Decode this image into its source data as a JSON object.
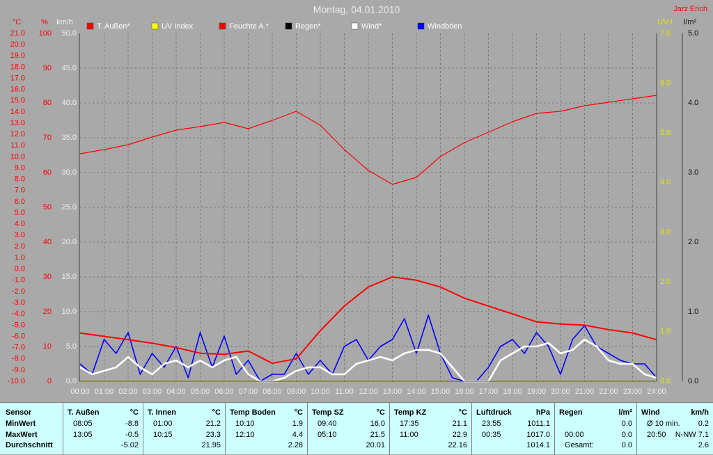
{
  "chart_data": {
    "type": "line",
    "title": "Montag, 04.01.2010",
    "corner_label": "Jarz Erich",
    "xlim": [
      0,
      24
    ],
    "xticks": [
      {
        "value": 0,
        "label": "00:00"
      },
      {
        "value": 1,
        "label": "01:00"
      },
      {
        "value": 2,
        "label": "02:00"
      },
      {
        "value": 3,
        "label": "03:00"
      },
      {
        "value": 4,
        "label": "04:00"
      },
      {
        "value": 5,
        "label": "05:00"
      },
      {
        "value": 6,
        "label": "06:00"
      },
      {
        "value": 7,
        "label": "07:00"
      },
      {
        "value": 8,
        "label": "08:00"
      },
      {
        "value": 9,
        "label": "09:00"
      },
      {
        "value": 10,
        "label": "10:00"
      },
      {
        "value": 11,
        "label": "11:00"
      },
      {
        "value": 12,
        "label": "12:00"
      },
      {
        "value": 13,
        "label": "13:00"
      },
      {
        "value": 14,
        "label": "14:00"
      },
      {
        "value": 15,
        "label": "15:00"
      },
      {
        "value": 16,
        "label": "16:00"
      },
      {
        "value": 17,
        "label": "17:00"
      },
      {
        "value": 18,
        "label": "18:00"
      },
      {
        "value": 19,
        "label": "19:00"
      },
      {
        "value": 20,
        "label": "20:00"
      },
      {
        "value": 21,
        "label": "21:00"
      },
      {
        "value": 22,
        "label": "22:00"
      },
      {
        "value": 23,
        "label": "23:00"
      },
      {
        "value": 24,
        "label": "24:00"
      }
    ],
    "grid": true,
    "axes": [
      {
        "id": "temp",
        "label": "°C",
        "color": "#ff0000",
        "lim": [
          -10,
          21
        ],
        "ticks": [
          {
            "value": 21,
            "label": "21.0"
          },
          {
            "value": 20,
            "label": "20.0"
          },
          {
            "value": 19,
            "label": "19.0"
          },
          {
            "value": 18,
            "label": "18.0"
          },
          {
            "value": 17,
            "label": "17.0"
          },
          {
            "value": 16,
            "label": "16.0"
          },
          {
            "value": 15,
            "label": "15.0"
          },
          {
            "value": 14,
            "label": "14.0"
          },
          {
            "value": 13,
            "label": "13.0"
          },
          {
            "value": 12,
            "label": "12.0"
          },
          {
            "value": 11,
            "label": "11.0"
          },
          {
            "value": 10,
            "label": "10.0"
          },
          {
            "value": 9,
            "label": "9.0"
          },
          {
            "value": 8,
            "label": "8.0"
          },
          {
            "value": 7,
            "label": "7.0"
          },
          {
            "value": 6,
            "label": "6.0"
          },
          {
            "value": 5,
            "label": "5.0"
          },
          {
            "value": 4,
            "label": "4.0"
          },
          {
            "value": 3,
            "label": "3.0"
          },
          {
            "value": 2,
            "label": "2.0"
          },
          {
            "value": 1,
            "label": "1.0"
          },
          {
            "value": 0,
            "label": "0.0"
          },
          {
            "value": -1,
            "label": "-1.0"
          },
          {
            "value": -2,
            "label": "-2.0"
          },
          {
            "value": -3,
            "label": "-3.0"
          },
          {
            "value": -4,
            "label": "-4.0"
          },
          {
            "value": -5,
            "label": "-5.0"
          },
          {
            "value": -6,
            "label": "-6.0"
          },
          {
            "value": -7,
            "label": "-7.0"
          },
          {
            "value": -8,
            "label": "-8.0"
          },
          {
            "value": -9,
            "label": "-9.0"
          },
          {
            "value": -10,
            "label": "-10.0"
          }
        ]
      },
      {
        "id": "hum",
        "label": "%",
        "color": "#ff0000",
        "lim": [
          0,
          100
        ],
        "ticks": [
          100,
          90,
          80,
          70,
          60,
          50,
          40,
          30,
          20,
          10,
          0
        ]
      },
      {
        "id": "wind",
        "label": "km/h",
        "color": "#f0f0f0",
        "lim": [
          0,
          50
        ],
        "ticks": [
          {
            "value": 50,
            "label": "50.0"
          },
          {
            "value": 45,
            "label": "45.0"
          },
          {
            "value": 40,
            "label": "40.0"
          },
          {
            "value": 35,
            "label": "35.0"
          },
          {
            "value": 30,
            "label": "30.0"
          },
          {
            "value": 25,
            "label": "25.0"
          },
          {
            "value": 20,
            "label": "20.0"
          },
          {
            "value": 15,
            "label": "15.0"
          },
          {
            "value": 10,
            "label": "10.0"
          },
          {
            "value": 5,
            "label": "5.0"
          },
          {
            "value": 0,
            "label": "0.0"
          }
        ]
      },
      {
        "id": "uv",
        "label": "UV-I",
        "color": "#e8e800",
        "lim": [
          0,
          7
        ],
        "ticks": [
          {
            "value": 7,
            "label": "7.0"
          },
          {
            "value": 6,
            "label": "6.0"
          },
          {
            "value": 5,
            "label": "5.0"
          },
          {
            "value": 4,
            "label": "4.0"
          },
          {
            "value": 3,
            "label": "3.0"
          },
          {
            "value": 2,
            "label": "2.0"
          },
          {
            "value": 1,
            "label": "1.0"
          },
          {
            "value": 0,
            "label": "0.0"
          }
        ]
      },
      {
        "id": "rain",
        "label": "l/m²",
        "color": "#101010",
        "lim": [
          0,
          5
        ],
        "ticks": [
          {
            "value": 5,
            "label": "5.0"
          },
          {
            "value": 4,
            "label": "4.0"
          },
          {
            "value": 3,
            "label": "3.0"
          },
          {
            "value": 2,
            "label": "2.0"
          },
          {
            "value": 1,
            "label": "1.0"
          },
          {
            "value": 0,
            "label": "0.0"
          }
        ]
      }
    ],
    "series": [
      {
        "name": "T. Außen*",
        "color": "#ff0000",
        "axis": "temp",
        "x": [
          0,
          1,
          2,
          3,
          4,
          5,
          6,
          7,
          8,
          9,
          10,
          11,
          12,
          13,
          14,
          15,
          16,
          17,
          18,
          19,
          20,
          21,
          22,
          23,
          24
        ],
        "values": [
          -5.7,
          -6.0,
          -6.3,
          -6.6,
          -7.0,
          -7.5,
          -7.6,
          -7.3,
          -8.4,
          -8.0,
          -5.5,
          -3.3,
          -1.6,
          -0.7,
          -1.0,
          -1.6,
          -2.6,
          -3.3,
          -4.0,
          -4.7,
          -4.9,
          -5.0,
          -5.4,
          -5.7,
          -6.3
        ]
      },
      {
        "name": "UV Index",
        "color": "#ffff00",
        "axis": "uv",
        "x": [
          0,
          1,
          2,
          3,
          4,
          5,
          6,
          7,
          8,
          9,
          10,
          11,
          12,
          13,
          14,
          15,
          16,
          17,
          18,
          19,
          20,
          21,
          22,
          23,
          24
        ],
        "values": [
          0,
          0,
          0,
          0,
          0,
          0,
          0,
          0,
          0,
          0,
          0,
          0,
          0,
          0,
          0,
          0,
          0,
          0,
          0,
          0,
          0,
          0,
          0,
          0,
          0
        ]
      },
      {
        "name": "Feuchte A.*",
        "color": "#ff0000",
        "axis": "hum",
        "x": [
          0,
          1,
          2,
          3,
          4,
          5,
          6,
          7,
          8,
          9,
          10,
          11,
          12,
          13,
          14,
          15,
          16,
          17,
          18,
          19,
          20,
          21,
          22,
          23,
          24
        ],
        "values": [
          65.4,
          66.6,
          68,
          70.2,
          72.2,
          73.2,
          74.4,
          72.6,
          75,
          77.6,
          73.6,
          66.6,
          60.6,
          56.6,
          58.6,
          64.6,
          68.6,
          71.6,
          74.6,
          77,
          77.6,
          79.2,
          80.2,
          81.2,
          82.2
        ]
      },
      {
        "name": "Regen*",
        "color": "#000000",
        "axis": "rain",
        "x": [
          0,
          1,
          2,
          3,
          4,
          5,
          6,
          7,
          8,
          9,
          10,
          11,
          12,
          13,
          14,
          15,
          16,
          17,
          18,
          19,
          20,
          21,
          22,
          23,
          24
        ],
        "values": [
          0,
          0,
          0,
          0,
          0,
          0,
          0,
          0,
          0,
          0,
          0,
          0,
          0,
          0,
          0,
          0,
          0,
          0,
          0,
          0,
          0,
          0,
          0,
          0,
          0
        ]
      },
      {
        "name": "Wind*",
        "color": "#ffffff",
        "axis": "wind",
        "x": [
          0,
          0.5,
          1,
          1.5,
          2,
          2.5,
          3,
          3.5,
          4,
          4.5,
          5,
          5.5,
          6,
          6.5,
          7,
          7.5,
          8,
          8.5,
          9,
          9.5,
          10,
          10.5,
          11,
          11.5,
          12,
          12.5,
          13,
          13.5,
          14,
          14.5,
          15,
          15.5,
          16,
          16.5,
          17,
          17.5,
          18,
          18.5,
          19,
          19.5,
          20,
          20.5,
          21,
          21.5,
          22,
          22.5,
          23,
          23.5,
          24
        ],
        "values": [
          2,
          1,
          1.5,
          2,
          3.5,
          2,
          1,
          2.5,
          3,
          2,
          3,
          2,
          3,
          3.5,
          1,
          0,
          0,
          0.5,
          1.5,
          2,
          2,
          1,
          1,
          2.5,
          3,
          3.5,
          3,
          4,
          4.5,
          4.5,
          4,
          2,
          0,
          0,
          0,
          3,
          4,
          5,
          5,
          5.5,
          4,
          4.5,
          6,
          5,
          3,
          2.5,
          2.5,
          1,
          0.5
        ]
      },
      {
        "name": "Windböen",
        "color": "#0000ff",
        "axis": "wind",
        "x": [
          0,
          0.5,
          1,
          1.5,
          2,
          2.5,
          3,
          3.5,
          4,
          4.5,
          5,
          5.5,
          6,
          6.5,
          7,
          7.5,
          8,
          8.5,
          9,
          9.5,
          10,
          10.5,
          11,
          11.5,
          12,
          12.5,
          13,
          13.5,
          14,
          14.5,
          15,
          15.5,
          16,
          16.5,
          17,
          17.5,
          18,
          18.5,
          19,
          19.5,
          20,
          20.5,
          21,
          21.5,
          22,
          22.5,
          23,
          23.5,
          24
        ],
        "values": [
          2.5,
          1,
          6,
          4,
          7,
          1,
          4,
          2,
          5,
          0.5,
          7,
          2,
          6.5,
          1,
          3,
          0,
          1,
          1,
          4,
          1,
          3,
          1,
          5,
          6,
          3,
          5,
          6,
          9,
          4,
          9.5,
          4,
          0.5,
          0,
          0,
          2,
          5,
          6,
          4,
          7,
          5,
          1,
          6,
          8,
          5,
          4,
          3,
          2.5,
          2.5,
          0.5
        ]
      }
    ]
  },
  "table": {
    "row_labels": [
      "Sensor",
      "MinWert",
      "MaxWert",
      "Durchschnitt"
    ],
    "columns": [
      {
        "name": "T. Außen",
        "unit": "°C",
        "rows": [
          [
            "08:05",
            "-8.8"
          ],
          [
            "13:05",
            "-0.5"
          ],
          [
            "-5.02"
          ]
        ]
      },
      {
        "name": "T. Innen",
        "unit": "°C",
        "rows": [
          [
            "01:00",
            "21.2"
          ],
          [
            "10:15",
            "23.3"
          ],
          [
            "21.95"
          ]
        ]
      },
      {
        "name": "Temp Boden",
        "unit": "°C",
        "rows": [
          [
            "10:10",
            "1.9"
          ],
          [
            "12:10",
            "4.4"
          ],
          [
            "2.28"
          ]
        ]
      },
      {
        "name": "Temp SZ",
        "unit": "°C",
        "rows": [
          [
            "09:40",
            "16.0"
          ],
          [
            "05:10",
            "21.5"
          ],
          [
            "20.01"
          ]
        ]
      },
      {
        "name": "Temp KZ",
        "unit": "°C",
        "rows": [
          [
            "17:35",
            "21.1"
          ],
          [
            "11:00",
            "22.9"
          ],
          [
            "22.16"
          ]
        ]
      },
      {
        "name": "Luftdruck",
        "unit": "hPa",
        "rows": [
          [
            "23:55",
            "1011.1"
          ],
          [
            "00:35",
            "1017.0"
          ],
          [
            "1014.1"
          ]
        ]
      },
      {
        "name": "Regen",
        "unit": "l/m²",
        "rows": [
          [
            "0.0"
          ],
          [
            "00:00",
            "0.0"
          ],
          [
            "Gesamt:",
            "0.0"
          ]
        ]
      },
      {
        "name": "Wind",
        "unit": "km/h",
        "rows": [
          [
            "Ø 10 min.",
            "0.2"
          ],
          [
            "20:50",
            "N-NW 7.1"
          ],
          [
            "2.6"
          ]
        ]
      }
    ]
  }
}
